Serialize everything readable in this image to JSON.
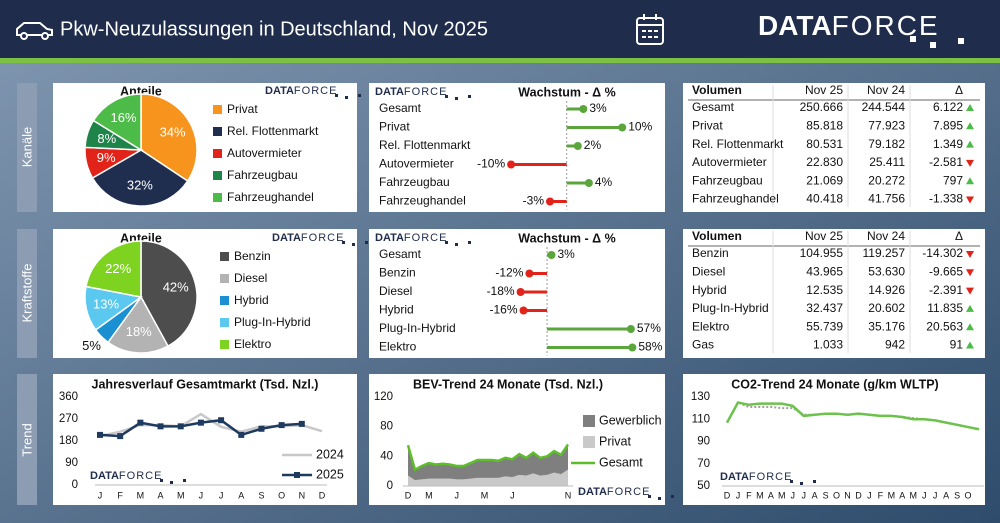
{
  "header": {
    "title": "Pkw-Neuzulassungen in Deutschland, Nov 2025",
    "logo": [
      "DATA",
      "FORCE"
    ]
  },
  "sections": [
    "Kanäle",
    "Kraftstoffe",
    "Trend"
  ],
  "chart_data": [
    {
      "type": "pie",
      "title": "Anteile",
      "categories": [
        "Privat",
        "Rel. Flottenmarkt",
        "Autovermieter",
        "Fahrzeugbau",
        "Fahrzeughandel"
      ],
      "values": [
        34,
        32,
        9,
        8,
        16
      ],
      "value_labels": [
        "34%",
        "32%",
        "9%",
        "8%",
        "16%"
      ],
      "colors": [
        "#f7941d",
        "#1f2d4e",
        "#e2231a",
        "#1e8449",
        "#4cbb47"
      ],
      "legend": "right"
    },
    {
      "type": "lollipop",
      "title": "Wachstum - Δ %",
      "categories": [
        "Gesamt",
        "Privat",
        "Rel. Flottenmarkt",
        "Autovermieter",
        "Fahrzeugbau",
        "Fahrzeughandel"
      ],
      "values": [
        3,
        10,
        2,
        -10,
        4,
        -3
      ],
      "value_labels": [
        "3%",
        "10%",
        "2%",
        "-10%",
        "4%",
        "-3%"
      ],
      "xlim": [
        -30,
        15
      ],
      "color_positive": "#5aa63c",
      "color_negative": "#e2231a"
    },
    {
      "type": "pie",
      "title": "Anteile",
      "categories": [
        "Benzin",
        "Diesel",
        "Hybrid",
        "Plug-In-Hybrid",
        "Elektro"
      ],
      "values": [
        42,
        18,
        5,
        13,
        22
      ],
      "value_labels": [
        "42%",
        "18%",
        "5%",
        "13%",
        "22%"
      ],
      "colors": [
        "#4d4d4d",
        "#b3b3b3",
        "#1a8fd1",
        "#5bc8f0",
        "#7ed321"
      ],
      "legend": "right"
    },
    {
      "type": "lollipop",
      "title": "Wachstum - Δ %",
      "categories": [
        "Gesamt",
        "Benzin",
        "Diesel",
        "Hybrid",
        "Plug-In-Hybrid",
        "Elektro"
      ],
      "values": [
        3,
        -12,
        -18,
        -16,
        57,
        58
      ],
      "value_labels": [
        "3%",
        "-12%",
        "-18%",
        "-16%",
        "57%",
        "58%"
      ],
      "xlim": [
        -100,
        70
      ],
      "color_positive": "#5aa63c",
      "color_negative": "#e2231a"
    },
    {
      "type": "line",
      "title": "Jahresverlauf Gesamtmarkt (Tsd. Nzl.)",
      "categories": [
        "J",
        "F",
        "M",
        "A",
        "M",
        "J",
        "J",
        "A",
        "S",
        "O",
        "N",
        "D"
      ],
      "ylim": [
        0,
        360
      ],
      "yticks": [
        0,
        90,
        180,
        270,
        360
      ],
      "grid": false,
      "legend": "lower right",
      "series": [
        {
          "name": "2024",
          "color": "#c8c8c8",
          "values": [
            200,
            218,
            245,
            245,
            240,
            290,
            238,
            218,
            240,
            240,
            245,
            220
          ]
        },
        {
          "name": "2025",
          "color": "#1f3a5f",
          "markers": true,
          "values": [
            205,
            200,
            255,
            240,
            240,
            255,
            265,
            205,
            230,
            245,
            250,
            null
          ]
        }
      ]
    },
    {
      "type": "area",
      "title": "BEV-Trend 24 Monate (Tsd. Nzl.)",
      "categories": [
        "D",
        null,
        null,
        "M",
        null,
        null,
        null,
        "J",
        null,
        null,
        null,
        "M",
        null,
        null,
        null,
        "J",
        null,
        null,
        null,
        null,
        null,
        null,
        null,
        "N"
      ],
      "ylim": [
        0,
        120
      ],
      "yticks": [
        0,
        40,
        80,
        120
      ],
      "grid": false,
      "stacked": true,
      "legend": "right",
      "series": [
        {
          "name": "Gewerblich",
          "kind": "area",
          "color": "#7f7f7f",
          "values": [
            41,
            14,
            18,
            21,
            19,
            20,
            19,
            18,
            18,
            21,
            24,
            24,
            24,
            23,
            25,
            24,
            28,
            24,
            28,
            24,
            25,
            29,
            26,
            34
          ]
        },
        {
          "name": "Privat",
          "kind": "area",
          "color": "#c9c9c9",
          "values": [
            14,
            8,
            9,
            10,
            10,
            10,
            10,
            9,
            9,
            10,
            11,
            11,
            11,
            11,
            13,
            12,
            15,
            14,
            17,
            14,
            15,
            18,
            16,
            22
          ]
        },
        {
          "name": "Gesamt",
          "kind": "line",
          "color": "#5cbf2a",
          "values": [
            55,
            22,
            27,
            31,
            29,
            30,
            29,
            27,
            27,
            31,
            35,
            35,
            35,
            34,
            38,
            36,
            43,
            38,
            45,
            38,
            40,
            47,
            42,
            56
          ]
        }
      ]
    },
    {
      "type": "line",
      "title": "CO2-Trend 24 Monate (g/km WLTP)",
      "categories": [
        "D",
        "J",
        "F",
        "M",
        "A",
        "M",
        "J",
        "J",
        "A",
        "S",
        "O",
        "N",
        "D",
        "J",
        "F",
        "M",
        "A",
        "M",
        "J",
        "J",
        "A",
        "S",
        "O",
        null
      ],
      "ylim": [
        50,
        130
      ],
      "yticks": [
        50,
        70,
        90,
        110,
        130
      ],
      "grid": false,
      "series": [
        {
          "color": "#a0a0a0",
          "dash": true,
          "values": [
            107,
            125,
            121,
            121,
            121,
            120,
            120,
            114,
            114,
            115,
            115,
            114,
            115,
            114,
            113,
            113,
            112,
            111,
            110,
            109,
            107,
            105,
            103,
            101
          ]
        },
        {
          "color": "#6cc24a",
          "values": [
            107,
            125,
            123,
            124,
            124,
            124,
            122,
            113,
            114,
            115,
            115,
            114,
            115,
            114,
            113,
            113,
            112,
            110,
            110,
            109,
            107,
            105,
            103,
            101
          ]
        }
      ]
    }
  ],
  "tables": [
    {
      "columns": [
        "Volumen",
        "Nov 25",
        "Nov 24",
        "Δ"
      ],
      "rows": [
        {
          "label": "Gesamt",
          "nov25": "250.666",
          "nov24": "244.544",
          "delta": "6.122",
          "trend": "up"
        },
        {
          "label": "Privat",
          "nov25": "85.818",
          "nov24": "77.923",
          "delta": "7.895",
          "trend": "up"
        },
        {
          "label": "Rel. Flottenmarkt",
          "nov25": "80.531",
          "nov24": "79.182",
          "delta": "1.349",
          "trend": "up"
        },
        {
          "label": "Autovermieter",
          "nov25": "22.830",
          "nov24": "25.411",
          "delta": "-2.581",
          "trend": "down"
        },
        {
          "label": "Fahrzeugbau",
          "nov25": "21.069",
          "nov24": "20.272",
          "delta": "797",
          "trend": "up"
        },
        {
          "label": "Fahrzeughandel",
          "nov25": "40.418",
          "nov24": "41.756",
          "delta": "-1.338",
          "trend": "down"
        }
      ]
    },
    {
      "columns": [
        "Volumen",
        "Nov 25",
        "Nov 24",
        "Δ"
      ],
      "rows": [
        {
          "label": "Benzin",
          "nov25": "104.955",
          "nov24": "119.257",
          "delta": "-14.302",
          "trend": "down"
        },
        {
          "label": "Diesel",
          "nov25": "43.965",
          "nov24": "53.630",
          "delta": "-9.665",
          "trend": "down"
        },
        {
          "label": "Hybrid",
          "nov25": "12.535",
          "nov24": "14.926",
          "delta": "-2.391",
          "trend": "down"
        },
        {
          "label": "Plug-In-Hybrid",
          "nov25": "32.437",
          "nov24": "20.602",
          "delta": "11.835",
          "trend": "up"
        },
        {
          "label": "Elektro",
          "nov25": "55.739",
          "nov24": "35.176",
          "delta": "20.563",
          "trend": "up"
        },
        {
          "label": "Gas",
          "nov25": "1.033",
          "nov24": "942",
          "delta": "91",
          "trend": "up"
        }
      ]
    }
  ]
}
